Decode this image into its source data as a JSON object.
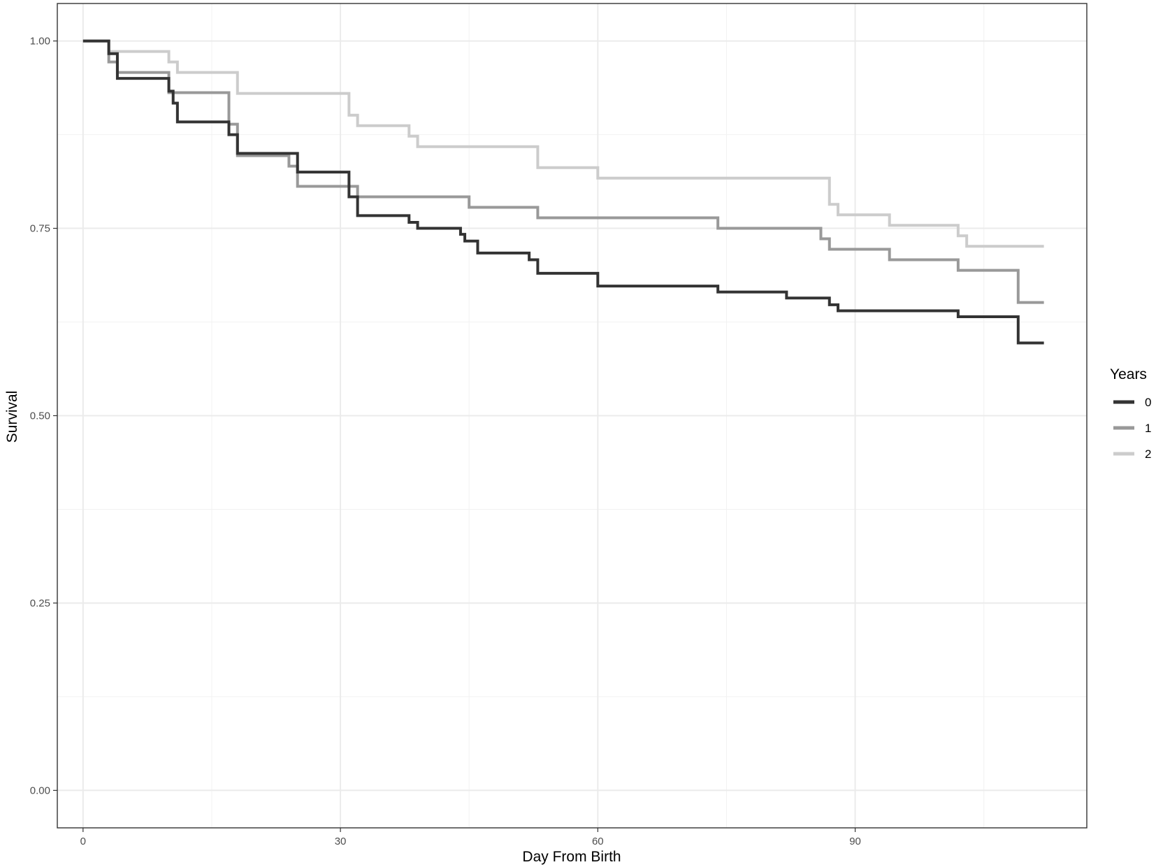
{
  "chart_data": {
    "type": "line",
    "step": true,
    "xlabel": "Day From Birth",
    "ylabel": "Survival",
    "xlim": [
      -3,
      117
    ],
    "ylim": [
      -0.05,
      1.05
    ],
    "x_ticks": [
      0,
      30,
      60,
      90
    ],
    "x_tick_labels": [
      "0",
      "30",
      "60",
      "90"
    ],
    "y_ticks": [
      0,
      0.25,
      0.5,
      0.75,
      1.0
    ],
    "y_tick_labels": [
      "0.00",
      "0.25",
      "0.50",
      "0.75",
      "1.00"
    ],
    "grid": true,
    "legend": {
      "title": "Years",
      "position": "right"
    },
    "series": [
      {
        "name": "0",
        "color": "#333333",
        "x": [
          0,
          3,
          4,
          10,
          10.5,
          11,
          17,
          17.5,
          18,
          25,
          25.5,
          31,
          31.5,
          32,
          38,
          38.5,
          39,
          44,
          44.5,
          45,
          46,
          52,
          53,
          60,
          74,
          82,
          87,
          87.5,
          88,
          102,
          109,
          112
        ],
        "y": [
          1.0,
          0.983,
          0.95,
          0.933,
          0.917,
          0.892,
          0.875,
          0.875,
          0.85,
          0.825,
          0.825,
          0.792,
          0.792,
          0.767,
          0.758,
          0.758,
          0.75,
          0.742,
          0.733,
          0.733,
          0.717,
          0.708,
          0.69,
          0.673,
          0.665,
          0.657,
          0.648,
          0.648,
          0.64,
          0.632,
          0.597,
          0.597
        ]
      },
      {
        "name": "1",
        "color": "#999999",
        "x": [
          0,
          3,
          4,
          10,
          17,
          18,
          24,
          25,
          31,
          32,
          45,
          53,
          74,
          86,
          87,
          94,
          102,
          109,
          112
        ],
        "y": [
          1.0,
          0.972,
          0.958,
          0.931,
          0.889,
          0.847,
          0.833,
          0.806,
          0.806,
          0.792,
          0.778,
          0.764,
          0.75,
          0.736,
          0.722,
          0.708,
          0.694,
          0.651,
          0.651
        ]
      },
      {
        "name": "2",
        "color": "#cccccc",
        "x": [
          0,
          3,
          10,
          11,
          18,
          31,
          32,
          38,
          39,
          53,
          60,
          87,
          88,
          94,
          102,
          103,
          112
        ],
        "y": [
          1.0,
          0.986,
          0.972,
          0.958,
          0.93,
          0.901,
          0.887,
          0.873,
          0.859,
          0.831,
          0.817,
          0.782,
          0.768,
          0.754,
          0.74,
          0.726,
          0.726
        ]
      }
    ]
  }
}
